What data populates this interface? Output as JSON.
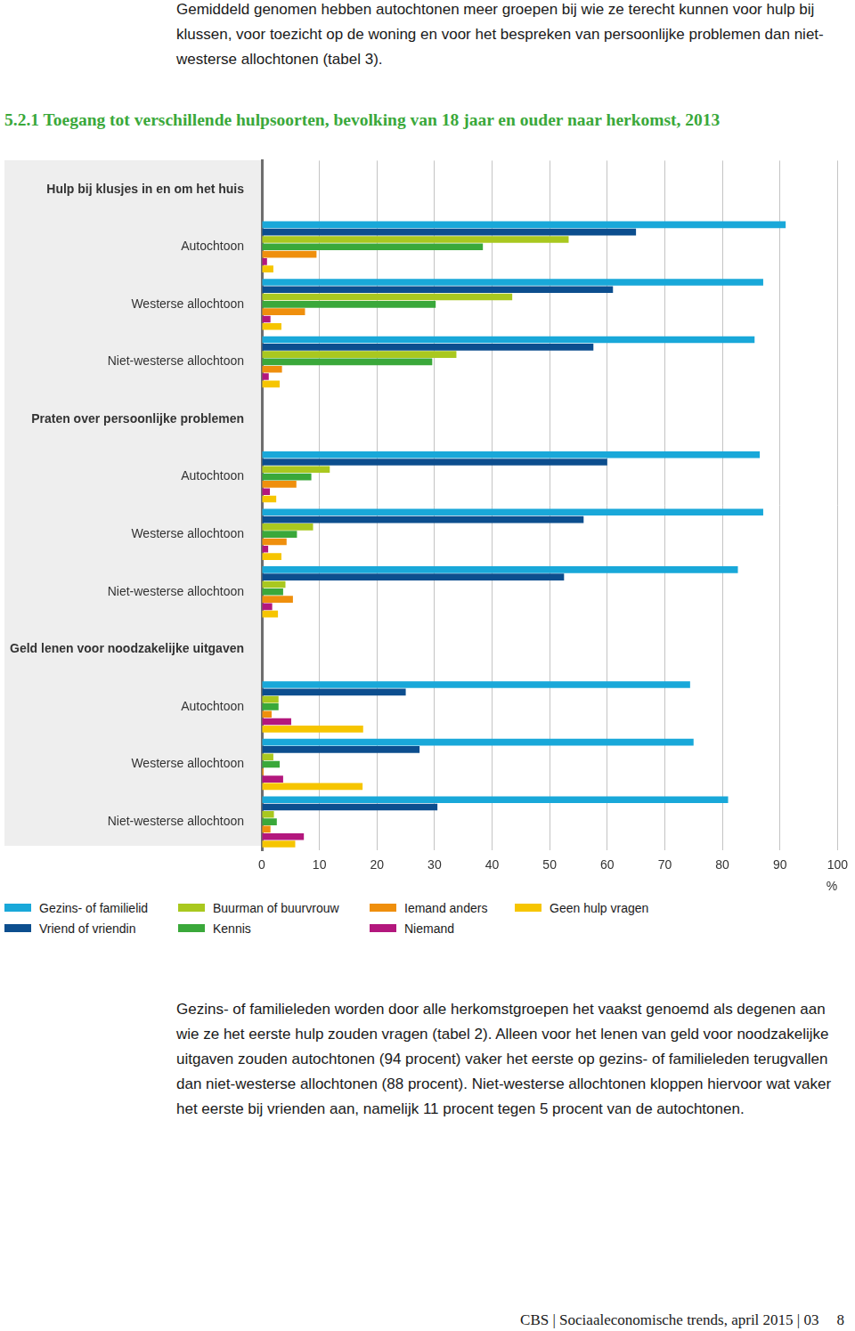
{
  "intro": "Gemiddeld genomen hebben autochtonen meer groepen bij wie ze terecht kunnen voor hulp bij klussen, voor toezicht op de woning en voor het bespreken van persoonlijke problemen dan niet-westerse allochtonen (tabel 3).",
  "chart_data": {
    "type": "bar",
    "title": "5.2.1 Toegang tot verschillende hulpsoorten, bevolking van 18 jaar en ouder naar herkomst, 2013",
    "orientation": "horizontal",
    "categories": [
      "Hulp bij klusjes in en om het huis",
      "Autochtoon",
      "Westerse allochtoon",
      "Niet-westerse allochtoon",
      "Praten over persoonlijke problemen",
      "Autochtoon",
      "Westerse allochtoon",
      "Niet-westerse allochtoon",
      "Geld lenen voor noodzakelijke uitgaven",
      "Autochtoon",
      "Westerse allochtoon",
      "Niet-westerse allochtoon"
    ],
    "series": [
      {
        "name": "Gezins- of familielid",
        "color": "#19a8d9",
        "values": [
          null,
          91,
          87.1,
          85.6,
          null,
          86.5,
          87.1,
          82.7,
          null,
          74.4,
          75,
          81
        ]
      },
      {
        "name": "Vriend of vriendin",
        "color": "#0c4e8e",
        "values": [
          null,
          65,
          61,
          57.6,
          null,
          60,
          55.9,
          52.5,
          null,
          25,
          27.4,
          30.5
        ]
      },
      {
        "name": "Buurman of buurvrouw",
        "color": "#a9c81f",
        "values": [
          null,
          53.3,
          43.5,
          33.8,
          null,
          11.8,
          8.9,
          4.1,
          null,
          2.9,
          2,
          2.1
        ]
      },
      {
        "name": "Kennis",
        "color": "#3aa83a",
        "values": [
          null,
          38.4,
          30.2,
          29.6,
          null,
          8.6,
          6.1,
          3.7,
          null,
          2.9,
          3.1,
          2.6
        ]
      },
      {
        "name": "Iemand anders",
        "color": "#ef8f0d",
        "values": [
          null,
          9.5,
          7.5,
          3.5,
          null,
          6,
          4.3,
          5.4,
          null,
          1.7,
          0.3,
          1.5
        ]
      },
      {
        "name": "Niemand",
        "color": "#b3177d",
        "values": [
          null,
          0.9,
          1.5,
          1.2,
          null,
          1.4,
          1.1,
          1.8,
          null,
          5.1,
          3.7,
          7.3
        ]
      },
      {
        "name": "Geen hulp vragen",
        "color": "#f6c500",
        "values": [
          null,
          2,
          3.4,
          3.1,
          null,
          2.5,
          3.4,
          2.8,
          null,
          17.6,
          17.5,
          5.8
        ]
      }
    ],
    "x_label": "%",
    "xlim": [
      0,
      100
    ],
    "xticks": [
      0,
      10,
      20,
      30,
      40,
      50,
      60,
      70,
      80,
      90,
      100
    ],
    "grid": true,
    "legend": "bottom"
  },
  "body": "Gezins- of familieleden worden door alle herkomstgroepen het vaakst genoemd als degenen aan wie ze het eerste hulp zouden vragen (tabel 2). Alleen voor het lenen van geld voor noodzakelijke uitgaven zouden autochtonen (94 procent) vaker het eerste op gezins- of familieleden terugvallen dan niet-westerse allochtonen (88 procent). Niet-westerse allochtonen kloppen hiervoor wat vaker het eerste bij vrienden aan, namelijk 11 procent tegen 5 procent van de autochtonen.",
  "footer": "CBS | Sociaaleconomische trends, april 2015 | 03",
  "page_number": "8"
}
